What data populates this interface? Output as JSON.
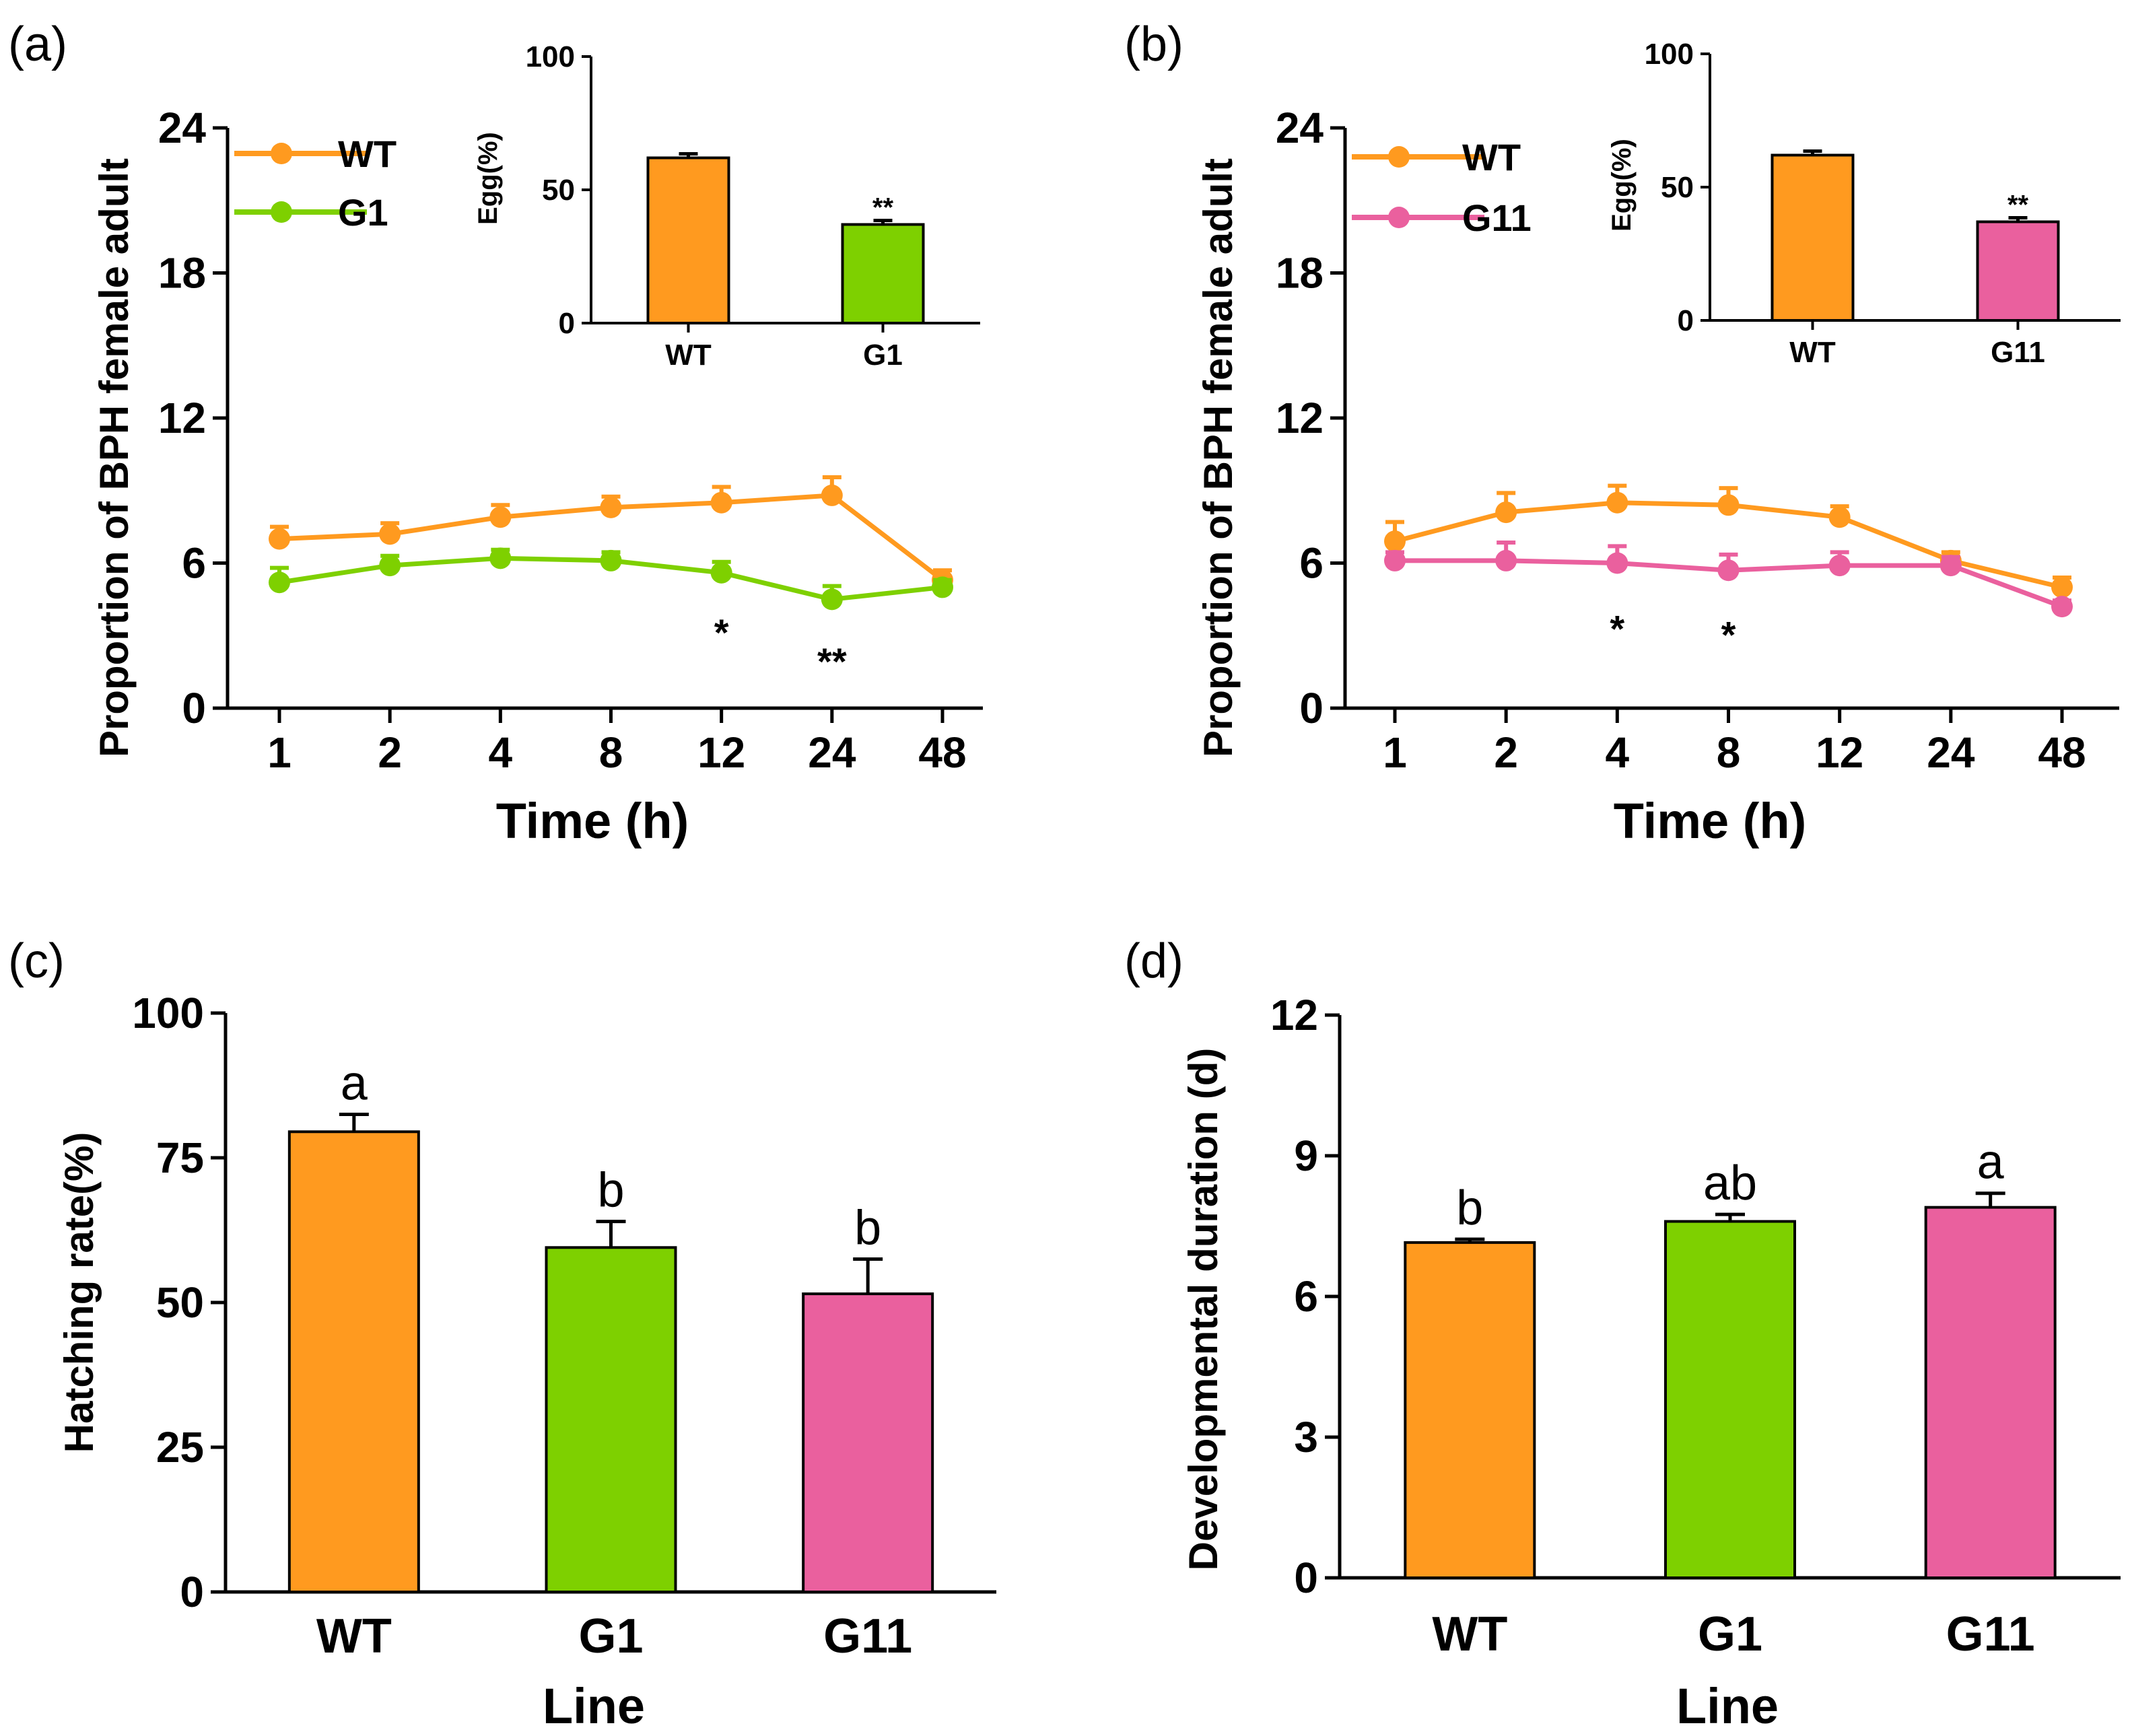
{
  "colors": {
    "WT": "#FF9A1F",
    "G1": "#7ED000",
    "G11": "#EA609E",
    "axis": "#000000"
  },
  "chart_data": [
    {
      "id": "a",
      "panel_label": "(a)",
      "type": "line",
      "xlabel": "Time (h)",
      "ylabel": "Proportion of BPH female adult",
      "categories": [
        "1",
        "2",
        "4",
        "8",
        "12",
        "24",
        "48"
      ],
      "ylim": [
        0,
        24
      ],
      "yticks": [
        "0",
        "6",
        "12",
        "18",
        "24"
      ],
      "legend_position": "top-left",
      "series": [
        {
          "name": "WT",
          "color": "#FF9A1F",
          "values": [
            7.0,
            7.2,
            7.9,
            8.3,
            8.5,
            8.8,
            5.3
          ],
          "errors": [
            0.5,
            0.45,
            0.5,
            0.45,
            0.65,
            0.75,
            0.4
          ]
        },
        {
          "name": "G1",
          "color": "#7ED000",
          "values": [
            5.2,
            5.9,
            6.2,
            6.1,
            5.6,
            4.5,
            5.0
          ],
          "errors": [
            0.6,
            0.4,
            0.35,
            0.35,
            0.45,
            0.55,
            0.3
          ]
        }
      ],
      "annotations": [
        {
          "category": "12",
          "text": "*"
        },
        {
          "category": "24",
          "text": "**"
        }
      ],
      "inset": {
        "type": "bar",
        "ylabel": "Egg(%)",
        "categories": [
          "WT",
          "G1"
        ],
        "values": [
          62,
          37
        ],
        "errors": [
          1.5,
          1.5
        ],
        "colors": [
          "#FF9A1F",
          "#7ED000"
        ],
        "ylim": [
          0,
          100
        ],
        "yticks": [
          "0",
          "50",
          "100"
        ],
        "significance": [
          "",
          "**"
        ]
      }
    },
    {
      "id": "b",
      "panel_label": "(b)",
      "type": "line",
      "xlabel": "Time (h)",
      "ylabel": "Proportion of BPH female adult",
      "categories": [
        "1",
        "2",
        "4",
        "8",
        "12",
        "24",
        "48"
      ],
      "ylim": [
        0,
        24
      ],
      "yticks": [
        "0",
        "6",
        "12",
        "18",
        "24"
      ],
      "legend_position": "top-left",
      "series": [
        {
          "name": "WT",
          "color": "#FF9A1F",
          "values": [
            6.9,
            8.1,
            8.5,
            8.4,
            7.9,
            6.1,
            5.0
          ],
          "errors": [
            0.8,
            0.8,
            0.7,
            0.7,
            0.45,
            0.35,
            0.4
          ]
        },
        {
          "name": "G11",
          "color": "#EA609E",
          "values": [
            6.1,
            6.1,
            6.0,
            5.7,
            5.9,
            5.9,
            4.2
          ],
          "errors": [
            0.35,
            0.75,
            0.7,
            0.65,
            0.55,
            0.35,
            0.25
          ]
        }
      ],
      "annotations": [
        {
          "category": "4",
          "text": "*"
        },
        {
          "category": "8",
          "text": "*"
        }
      ],
      "inset": {
        "type": "bar",
        "ylabel": "Egg(%)",
        "categories": [
          "WT",
          "G11"
        ],
        "values": [
          62,
          37
        ],
        "errors": [
          1.5,
          1.5
        ],
        "colors": [
          "#FF9A1F",
          "#EA609E"
        ],
        "ylim": [
          0,
          100
        ],
        "yticks": [
          "0",
          "50",
          "100"
        ],
        "significance": [
          "",
          "**"
        ]
      }
    },
    {
      "id": "c",
      "panel_label": "(c)",
      "type": "bar",
      "xlabel": "Line",
      "ylabel": "Hatching rate(%)",
      "categories": [
        "WT",
        "G1",
        "G11"
      ],
      "values": [
        79.5,
        59.5,
        51.5
      ],
      "errors": [
        3.0,
        4.5,
        6.0
      ],
      "letters": [
        "a",
        "b",
        "b"
      ],
      "colors": [
        "#FF9A1F",
        "#7ED000",
        "#EA609E"
      ],
      "ylim": [
        0,
        100
      ],
      "yticks": [
        "0",
        "25",
        "50",
        "75",
        "100"
      ]
    },
    {
      "id": "d",
      "panel_label": "(d)",
      "type": "bar",
      "xlabel": "Line",
      "ylabel": "Developmental duration (d)",
      "categories": [
        "WT",
        "G1",
        "G11"
      ],
      "values": [
        7.15,
        7.6,
        7.9
      ],
      "errors": [
        0.07,
        0.15,
        0.3
      ],
      "letters": [
        "b",
        "ab",
        "a"
      ],
      "colors": [
        "#FF9A1F",
        "#7ED000",
        "#EA609E"
      ],
      "ylim": [
        0,
        12
      ],
      "yticks": [
        "0",
        "3",
        "6",
        "9",
        "12"
      ]
    }
  ]
}
